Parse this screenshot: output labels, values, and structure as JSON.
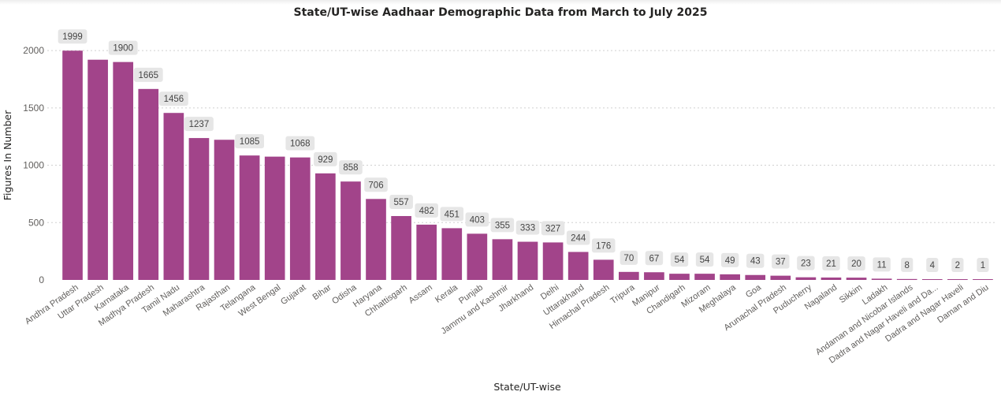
{
  "chart_data": {
    "type": "bar",
    "title": "State/UT-wise Aadhaar Demographic Data from March to July 2025",
    "xlabel": "State/UT-wise",
    "ylabel": "Figures In Number",
    "ylim": [
      0,
      2200
    ],
    "yticks": [
      0,
      500,
      1000,
      1500,
      2000
    ],
    "grid": true,
    "categories": [
      "Andhra Pradesh",
      "Uttar Pradesh",
      "Karnataka",
      "Madhya Pradesh",
      "Tamil Nadu",
      "Maharashtra",
      "Rajasthan",
      "Telangana",
      "West Bengal",
      "Gujarat",
      "Bihar",
      "Odisha",
      "Haryana",
      "Chhattisgarh",
      "Assam",
      "Kerala",
      "Punjab",
      "Jammu and Kashmir",
      "Jharkhand",
      "Delhi",
      "Uttarakhand",
      "Himachal Pradesh",
      "Tripura",
      "Manipur",
      "Chandigarh",
      "Mizoram",
      "Meghalaya",
      "Goa",
      "Arunachal Pradesh",
      "Puducherry",
      "Nagaland",
      "Sikkim",
      "Ladakh",
      "Andaman and Nicobar Islands",
      "Dadra and Nagar Haveli and Da...",
      "Dadra and Nagar Haveli",
      "Daman and Diu"
    ],
    "values": [
      1999,
      1920,
      1900,
      1665,
      1456,
      1237,
      1222,
      1085,
      1075,
      1068,
      929,
      858,
      706,
      557,
      482,
      451,
      403,
      355,
      333,
      327,
      244,
      176,
      70,
      67,
      54,
      54,
      49,
      43,
      37,
      23,
      21,
      20,
      11,
      8,
      4,
      2,
      1
    ],
    "data_labels": [
      "1999",
      null,
      "1900",
      "1665",
      "1456",
      "1237",
      null,
      "1085",
      null,
      "1068",
      "929",
      "858",
      "706",
      "557",
      "482",
      "451",
      "403",
      "355",
      "333",
      "327",
      "244",
      "176",
      "70",
      "67",
      "54",
      "54",
      "49",
      "43",
      "37",
      "23",
      "21",
      "20",
      "11",
      "8",
      "4",
      "2",
      "1"
    ],
    "bar_color": "#a2448a"
  }
}
